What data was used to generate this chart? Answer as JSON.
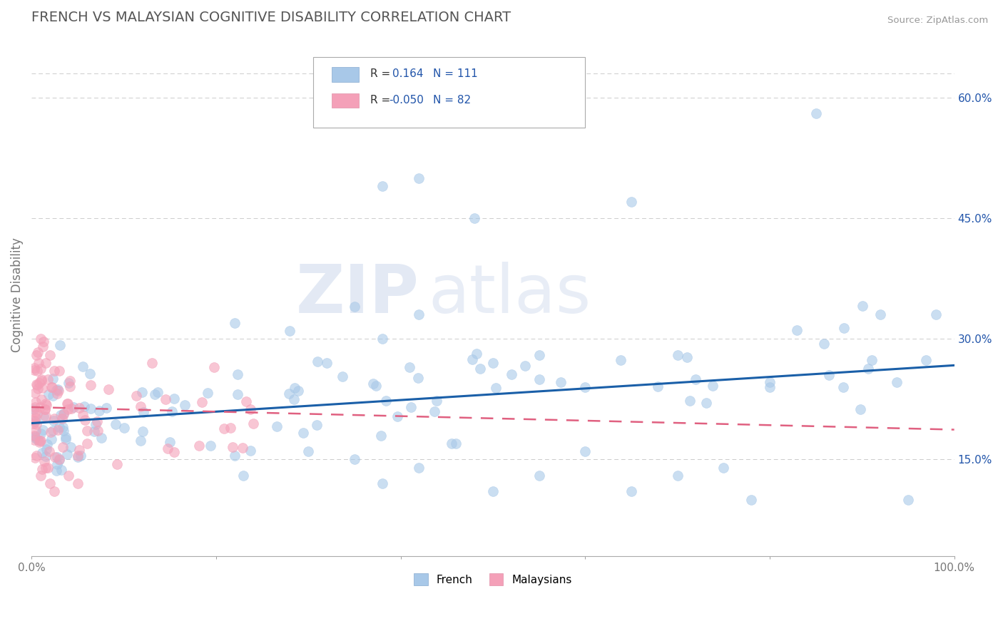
{
  "title": "FRENCH VS MALAYSIAN COGNITIVE DISABILITY CORRELATION CHART",
  "source": "Source: ZipAtlas.com",
  "ylabel": "Cognitive Disability",
  "xlim": [
    0,
    100
  ],
  "ylim": [
    3,
    68
  ],
  "yticks_right": [
    15,
    30,
    45,
    60
  ],
  "ytick_labels_right": [
    "15.0%",
    "30.0%",
    "45.0%",
    "60.0%"
  ],
  "french_color": "#a8c8e8",
  "malaysian_color": "#f4a0b8",
  "french_line_color": "#1a5fa8",
  "malaysian_line_color": "#e06080",
  "legend_french_label": "French",
  "legend_malaysian_label": "Malaysians",
  "r_french": "0.164",
  "n_french": "111",
  "r_malaysian": "-0.050",
  "n_malaysian": "82",
  "watermark_zip": "ZIP",
  "watermark_atlas": "atlas",
  "background_color": "#ffffff",
  "grid_color": "#cccccc",
  "title_color": "#555555",
  "axis_color": "#777777",
  "legend_text_color": "#2255aa",
  "french_slope": 0.072,
  "french_intercept": 19.5,
  "malay_slope": -0.028,
  "malay_intercept": 21.5
}
